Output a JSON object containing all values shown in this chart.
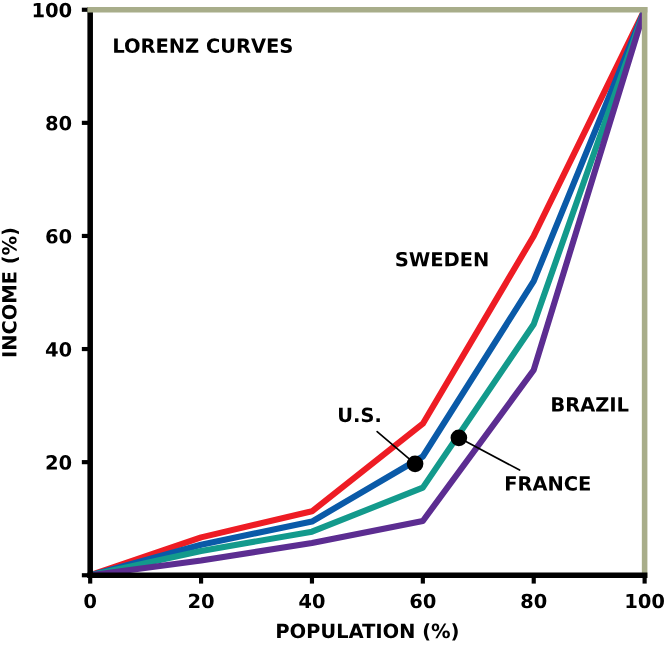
{
  "chart_data": {
    "type": "line",
    "title": "LORENZ CURVES",
    "xlabel": "POPULATION (%)",
    "ylabel": "INCOME (%)",
    "x": [
      0,
      20,
      40,
      60,
      80,
      100
    ],
    "series": [
      {
        "name": "SWEDEN",
        "color": "#ee1c24",
        "values": [
          0,
          6.7,
          11.3,
          26.8,
          60,
          100
        ]
      },
      {
        "color": "#0a5aa8",
        "values": [
          0,
          5.4,
          9.5,
          21,
          52,
          100
        ]
      },
      {
        "color": "#139a8c",
        "values": [
          0,
          4.3,
          7.7,
          15.5,
          44.4,
          100
        ]
      },
      {
        "name": "BRAZIL",
        "color": "#5c2d91",
        "values": [
          0,
          2.6,
          5.7,
          9.6,
          36.3,
          100
        ]
      }
    ],
    "annotations": [
      {
        "text": "U.S.",
        "x": 58.6,
        "y": 19.7
      },
      {
        "text": "FRANCE",
        "x": 66.5,
        "y": 24.3
      }
    ],
    "xlim": [
      0,
      100
    ],
    "ylim": [
      0,
      100
    ],
    "xticks": [
      0,
      20,
      40,
      60,
      80,
      100
    ],
    "yticks": [
      {
        "value": 0,
        "label": null
      },
      20,
      40,
      60,
      80,
      100
    ],
    "grid": false,
    "legend": false,
    "marker": "none",
    "line_style": "solid"
  }
}
